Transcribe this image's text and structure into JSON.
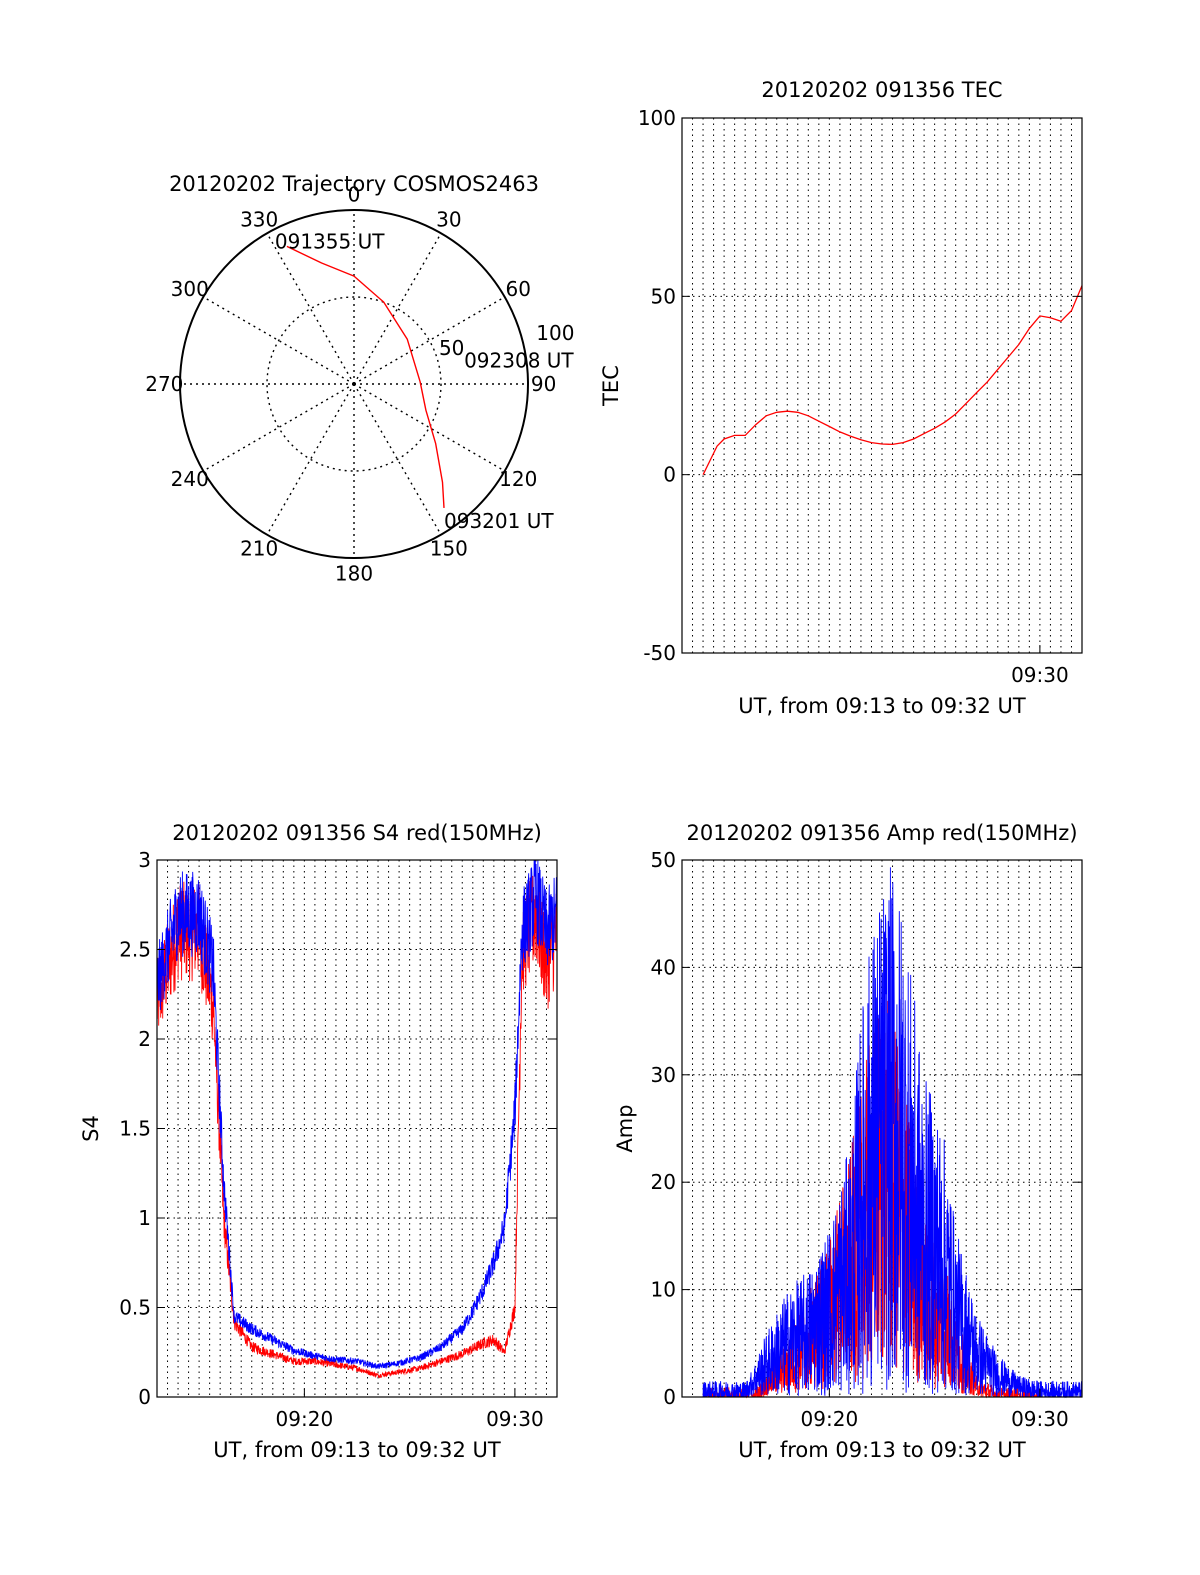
{
  "colors": {
    "red": "#ff0000",
    "blue": "#0000ff",
    "axis": "#000000",
    "background": "#ffffff"
  },
  "chart_data": [
    {
      "id": "trajectory",
      "type": "polar",
      "title": "20120202 Trajectory COSMOS2463",
      "angle_labels": [
        "0",
        "30",
        "60",
        "90",
        "120",
        "150",
        "180",
        "210",
        "240",
        "270",
        "300",
        "330"
      ],
      "radial_labels": [
        "50",
        "100"
      ],
      "rlim": [
        0,
        100
      ],
      "series": [
        {
          "color": "#ff0000",
          "points": [
            {
              "az": 334,
              "r": 88
            },
            {
              "az": 345,
              "r": 72
            },
            {
              "az": 0,
              "r": 62
            },
            {
              "az": 20,
              "r": 50
            },
            {
              "az": 50,
              "r": 40
            },
            {
              "az": 88,
              "r": 38
            },
            {
              "az": 110,
              "r": 44
            },
            {
              "az": 126,
              "r": 58
            },
            {
              "az": 138,
              "r": 76
            },
            {
              "az": 144,
              "r": 88
            }
          ]
        }
      ],
      "annotations": [
        {
          "text": "091355 UT",
          "az": 334,
          "r": 88
        },
        {
          "text": "092308 UT",
          "az": 88,
          "r": 38
        },
        {
          "text": "093201 UT",
          "az": 144,
          "r": 88
        }
      ]
    },
    {
      "id": "tec",
      "type": "line",
      "title": "20120202 091356 TEC",
      "xlabel": "UT, from 09:13 to 09:32 UT",
      "ylabel": "TEC",
      "xlim": [
        "09:13",
        "09:32"
      ],
      "ylim": [
        -50,
        100
      ],
      "yticks": [
        "-50",
        "0",
        "50",
        "100"
      ],
      "xticks": [
        {
          "t": "09:30",
          "label": "09:30"
        }
      ],
      "grid": true,
      "series": [
        {
          "color": "#ff0000",
          "x": [
            "09:14:00",
            "09:14:20",
            "09:14:40",
            "09:15:00",
            "09:15:30",
            "09:16:00",
            "09:16:30",
            "09:17:00",
            "09:17:30",
            "09:18:00",
            "09:18:30",
            "09:19:00",
            "09:19:30",
            "09:20:00",
            "09:20:30",
            "09:21:00",
            "09:21:30",
            "09:22:00",
            "09:22:30",
            "09:23:00",
            "09:23:30",
            "09:24:00",
            "09:24:30",
            "09:25:00",
            "09:25:30",
            "09:26:00",
            "09:26:30",
            "09:27:00",
            "09:27:30",
            "09:28:00",
            "09:28:30",
            "09:29:00",
            "09:29:30",
            "09:30:00",
            "09:30:30",
            "09:31:00",
            "09:31:30",
            "09:32:00"
          ],
          "y": [
            0,
            4,
            8,
            10,
            11,
            11,
            14,
            16.5,
            17.5,
            17.8,
            17.5,
            16.5,
            15,
            13.5,
            12,
            10.8,
            9.8,
            9,
            8.6,
            8.5,
            9,
            10,
            11.5,
            13,
            14.8,
            17,
            20,
            23,
            26,
            29.5,
            33,
            36.5,
            41,
            44.5,
            44,
            43,
            46,
            53
          ]
        }
      ]
    },
    {
      "id": "s4",
      "type": "line",
      "title": "20120202 091356 S4 red(150MHz)",
      "xlabel": "UT, from 09:13 to 09:32 UT",
      "ylabel": "S4",
      "xlim": [
        "09:13",
        "09:32"
      ],
      "ylim": [
        0,
        3
      ],
      "yticks": [
        "0",
        "0.5",
        "1",
        "1.5",
        "2",
        "2.5",
        "3"
      ],
      "xticks": [
        {
          "t": "09:20",
          "label": "09:20"
        },
        {
          "t": "09:30",
          "label": "09:30"
        }
      ],
      "grid": true,
      "series": [
        {
          "color": "#ff0000",
          "noise": 0.06,
          "x": [
            "09:13:00",
            "09:14:00",
            "09:15:00",
            "09:15:40",
            "09:16:10",
            "09:16:40",
            "09:17:30",
            "09:18:30",
            "09:19:30",
            "09:20:30",
            "09:21:30",
            "09:22:30",
            "09:23:00",
            "09:23:30",
            "09:24:30",
            "09:25:30",
            "09:26:30",
            "09:27:30",
            "09:28:30",
            "09:29:00",
            "09:29:30",
            "09:30:00",
            "09:30:20",
            "09:31:00",
            "09:31:30",
            "09:32:00"
          ],
          "y": [
            2.2,
            2.6,
            2.6,
            2.2,
            1.0,
            0.42,
            0.28,
            0.24,
            0.2,
            0.2,
            0.18,
            0.16,
            0.14,
            0.12,
            0.14,
            0.16,
            0.2,
            0.24,
            0.3,
            0.32,
            0.25,
            0.5,
            2.5,
            2.7,
            2.4,
            2.6
          ]
        },
        {
          "color": "#0000ff",
          "noise": 0.05,
          "x": [
            "09:13:00",
            "09:14:00",
            "09:15:00",
            "09:15:40",
            "09:16:10",
            "09:16:40",
            "09:17:30",
            "09:18:30",
            "09:19:30",
            "09:20:30",
            "09:21:30",
            "09:22:30",
            "09:23:30",
            "09:24:30",
            "09:25:30",
            "09:26:30",
            "09:27:30",
            "09:28:00",
            "09:28:30",
            "09:29:00",
            "09:29:30",
            "09:30:00",
            "09:30:20",
            "09:31:00",
            "09:31:30",
            "09:32:00"
          ],
          "y": [
            2.3,
            2.7,
            2.7,
            2.4,
            1.2,
            0.45,
            0.38,
            0.32,
            0.26,
            0.23,
            0.21,
            0.2,
            0.17,
            0.19,
            0.22,
            0.28,
            0.38,
            0.48,
            0.6,
            0.75,
            0.95,
            1.6,
            2.6,
            2.8,
            2.6,
            2.7
          ]
        }
      ]
    },
    {
      "id": "amp",
      "type": "line",
      "title": "20120202 091356 Amp red(150MHz)",
      "xlabel": "UT, from 09:13 to 09:32 UT",
      "ylabel": "Amp",
      "xlim": [
        "09:13",
        "09:32"
      ],
      "ylim": [
        0,
        50
      ],
      "yticks": [
        "0",
        "10",
        "20",
        "30",
        "40",
        "50"
      ],
      "xticks": [
        {
          "t": "09:20",
          "label": "09:20"
        },
        {
          "t": "09:30",
          "label": "09:30"
        }
      ],
      "grid": true,
      "series": [
        {
          "color": "#ff0000",
          "noise": 0.5,
          "x": [
            "09:14:00",
            "09:16:30",
            "09:17:00",
            "09:18:00",
            "09:19:00",
            "09:20:00",
            "09:21:00",
            "09:21:30",
            "09:22:00",
            "09:22:30",
            "09:23:00",
            "09:23:30",
            "09:24:00",
            "09:24:30",
            "09:25:00",
            "09:25:30",
            "09:26:00",
            "09:27:00",
            "09:28:00",
            "09:30:00"
          ],
          "y": [
            0,
            0,
            1,
            3,
            5,
            8,
            12,
            15,
            18,
            20,
            19,
            16,
            12,
            9,
            8,
            7,
            4,
            1,
            0,
            0
          ]
        },
        {
          "color": "#0000ff",
          "noise": 0.55,
          "x": [
            "09:14:00",
            "09:16:00",
            "09:17:00",
            "09:18:00",
            "09:19:00",
            "09:20:00",
            "09:21:00",
            "09:21:30",
            "09:22:00",
            "09:22:30",
            "09:23:00",
            "09:23:30",
            "09:24:00",
            "09:24:30",
            "09:25:00",
            "09:25:30",
            "09:26:00",
            "09:27:00",
            "09:28:00",
            "09:29:00",
            "09:30:00",
            "09:32:00"
          ],
          "y": [
            0.5,
            0.5,
            3,
            5,
            6,
            8,
            12,
            18,
            22,
            24,
            25,
            23,
            19,
            15,
            14,
            12,
            8,
            4,
            2,
            1,
            0.5,
            0.5
          ]
        }
      ]
    }
  ]
}
